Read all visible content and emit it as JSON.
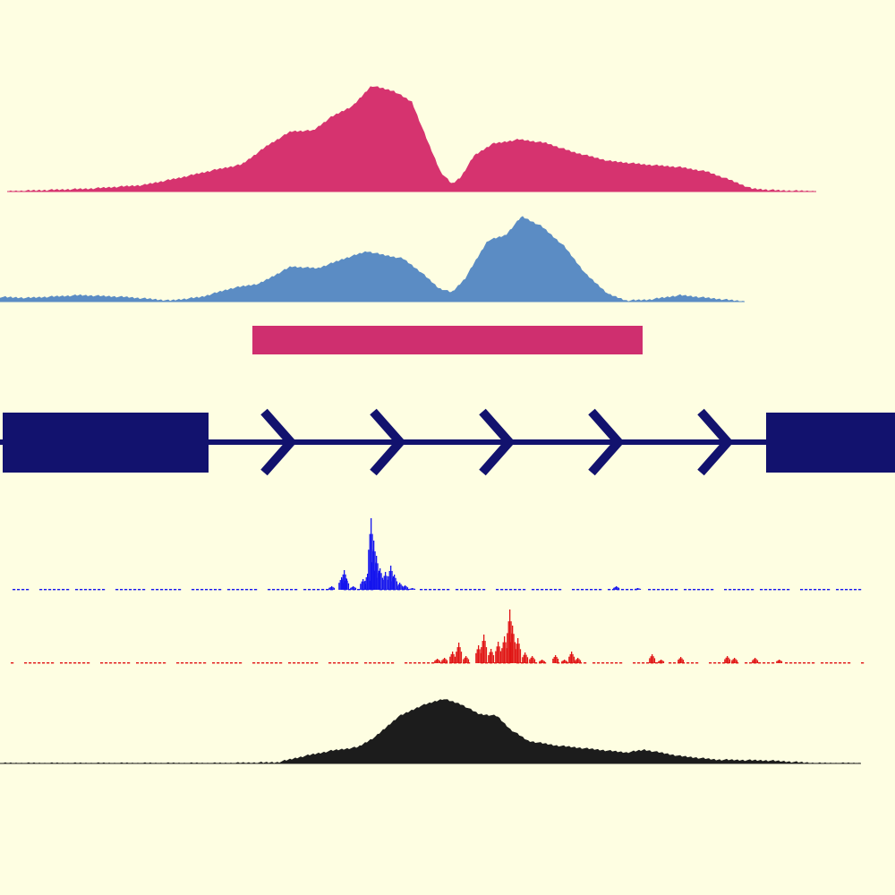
{
  "colors": {
    "background": "#fefee2",
    "track_magenta": "#d6336f",
    "track_steelblue": "#5b8cc4",
    "region_bar": "#cf2f6f",
    "gene_model": "#12126e",
    "track_blue": "#1414ee",
    "track_red": "#e01414",
    "track_black": "#1c1c1c"
  },
  "tracks": [
    {
      "id": "signal-magenta",
      "type": "area",
      "color_key": "track_magenta",
      "x_range": [
        8,
        912
      ],
      "profile": [
        [
          8,
          0
        ],
        [
          40,
          1
        ],
        [
          100,
          3
        ],
        [
          160,
          7
        ],
        [
          200,
          15
        ],
        [
          240,
          24
        ],
        [
          270,
          30
        ],
        [
          300,
          52
        ],
        [
          325,
          67
        ],
        [
          350,
          68
        ],
        [
          370,
          83
        ],
        [
          395,
          96
        ],
        [
          415,
          118
        ],
        [
          440,
          112
        ],
        [
          460,
          100
        ],
        [
          478,
          55
        ],
        [
          492,
          22
        ],
        [
          505,
          8
        ],
        [
          515,
          16
        ],
        [
          530,
          40
        ],
        [
          550,
          53
        ],
        [
          580,
          58
        ],
        [
          610,
          54
        ],
        [
          640,
          44
        ],
        [
          680,
          34
        ],
        [
          720,
          30
        ],
        [
          760,
          27
        ],
        [
          790,
          22
        ],
        [
          815,
          13
        ],
        [
          840,
          3
        ],
        [
          870,
          1
        ],
        [
          912,
          0
        ]
      ]
    },
    {
      "id": "signal-steelblue",
      "type": "area",
      "color_key": "track_steelblue",
      "x_range": [
        0,
        832
      ],
      "profile": [
        [
          0,
          5
        ],
        [
          30,
          4
        ],
        [
          90,
          7
        ],
        [
          140,
          5
        ],
        [
          190,
          1
        ],
        [
          225,
          5
        ],
        [
          260,
          15
        ],
        [
          290,
          20
        ],
        [
          325,
          39
        ],
        [
          355,
          37
        ],
        [
          385,
          48
        ],
        [
          410,
          56
        ],
        [
          428,
          52
        ],
        [
          450,
          48
        ],
        [
          470,
          33
        ],
        [
          490,
          15
        ],
        [
          505,
          10
        ],
        [
          520,
          26
        ],
        [
          545,
          68
        ],
        [
          565,
          74
        ],
        [
          583,
          95
        ],
        [
          605,
          84
        ],
        [
          630,
          62
        ],
        [
          655,
          30
        ],
        [
          680,
          8
        ],
        [
          700,
          1
        ],
        [
          725,
          2
        ],
        [
          760,
          7
        ],
        [
          790,
          4
        ],
        [
          832,
          0
        ]
      ]
    },
    {
      "id": "region-bar",
      "type": "bar",
      "color_key": "region_bar",
      "x_range": [
        282,
        718
      ]
    },
    {
      "id": "gene-model",
      "type": "gene",
      "color_key": "gene_model",
      "exons": [
        [
          3,
          233
        ],
        [
          856,
          1000
        ]
      ],
      "intron": [
        0,
        1000
      ],
      "strand": "+",
      "arrows": [
        310,
        432,
        554,
        676,
        798
      ]
    },
    {
      "id": "signal-blue",
      "type": "sparse",
      "color_key": "track_blue",
      "x_range": [
        14,
        962
      ],
      "peaks": [
        [
          370,
          4
        ],
        [
          381,
          14
        ],
        [
          384,
          22
        ],
        [
          386,
          13
        ],
        [
          394,
          4
        ],
        [
          405,
          12
        ],
        [
          410,
          18
        ],
        [
          414,
          80
        ],
        [
          417,
          55
        ],
        [
          420,
          38
        ],
        [
          424,
          24
        ],
        [
          430,
          20
        ],
        [
          436,
          27
        ],
        [
          440,
          17
        ],
        [
          446,
          8
        ],
        [
          452,
          5
        ],
        [
          460,
          2
        ],
        [
          688,
          4
        ],
        [
          712,
          2
        ]
      ]
    },
    {
      "id": "signal-red",
      "type": "sparse",
      "color_key": "track_red",
      "x_range": [
        12,
        962
      ],
      "peaks": [
        [
          488,
          5
        ],
        [
          496,
          6
        ],
        [
          505,
          13
        ],
        [
          512,
          23
        ],
        [
          520,
          8
        ],
        [
          534,
          20
        ],
        [
          540,
          32
        ],
        [
          548,
          16
        ],
        [
          556,
          24
        ],
        [
          563,
          30
        ],
        [
          569,
          60
        ],
        [
          572,
          42
        ],
        [
          578,
          28
        ],
        [
          586,
          12
        ],
        [
          594,
          8
        ],
        [
          605,
          4
        ],
        [
          620,
          9
        ],
        [
          630,
          4
        ],
        [
          638,
          13
        ],
        [
          645,
          6
        ],
        [
          728,
          10
        ],
        [
          738,
          4
        ],
        [
          760,
          7
        ],
        [
          812,
          8
        ],
        [
          820,
          6
        ],
        [
          843,
          6
        ],
        [
          870,
          4
        ]
      ]
    },
    {
      "id": "signal-black",
      "type": "area",
      "color_key": "track_black",
      "x_range": [
        0,
        962
      ],
      "profile": [
        [
          0,
          0
        ],
        [
          250,
          0
        ],
        [
          310,
          1
        ],
        [
          340,
          8
        ],
        [
          370,
          14
        ],
        [
          400,
          18
        ],
        [
          420,
          30
        ],
        [
          445,
          52
        ],
        [
          470,
          64
        ],
        [
          495,
          72
        ],
        [
          515,
          66
        ],
        [
          535,
          55
        ],
        [
          555,
          53
        ],
        [
          570,
          38
        ],
        [
          590,
          25
        ],
        [
          620,
          20
        ],
        [
          660,
          16
        ],
        [
          700,
          12
        ],
        [
          720,
          15
        ],
        [
          760,
          8
        ],
        [
          800,
          4
        ],
        [
          860,
          3
        ],
        [
          912,
          0
        ],
        [
          962,
          0
        ]
      ]
    }
  ]
}
